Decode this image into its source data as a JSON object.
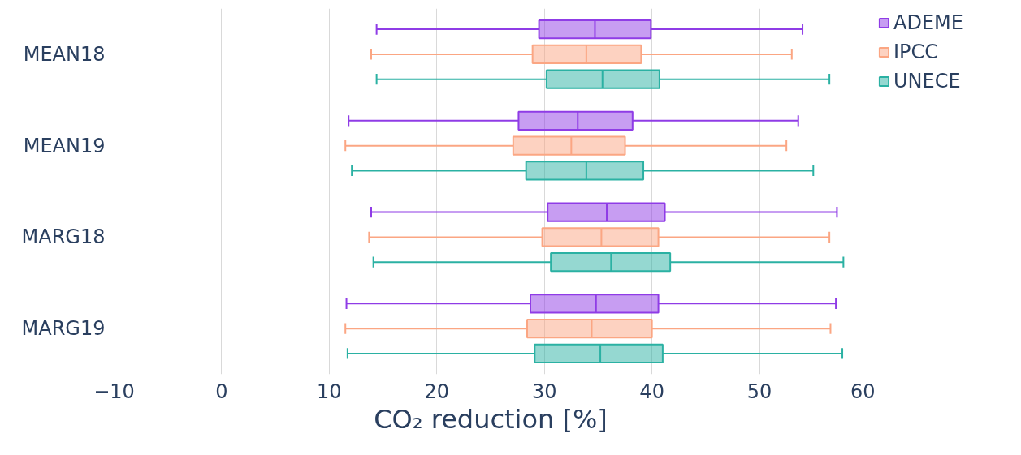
{
  "chart_data": {
    "type": "box",
    "orientation": "horizontal",
    "xlabel": "CO₂ reduction [%]",
    "categories": [
      "MEAN18",
      "MEAN19",
      "MARG18",
      "MARG19"
    ],
    "series": [
      {
        "name": "ADEME",
        "color": "#8f3ce6",
        "boxes": [
          {
            "low": 14.4,
            "q1": 29.5,
            "median": 34.7,
            "q3": 39.9,
            "high": 54.0
          },
          {
            "low": 11.8,
            "q1": 27.6,
            "median": 33.1,
            "q3": 38.2,
            "high": 53.6
          },
          {
            "low": 13.9,
            "q1": 30.3,
            "median": 35.8,
            "q3": 41.2,
            "high": 57.2
          },
          {
            "low": 11.6,
            "q1": 28.7,
            "median": 34.8,
            "q3": 40.6,
            "high": 57.1
          }
        ]
      },
      {
        "name": "IPCC",
        "color": "#fba683",
        "boxes": [
          {
            "low": 13.9,
            "q1": 28.9,
            "median": 33.9,
            "q3": 39.0,
            "high": 53.0
          },
          {
            "low": 11.5,
            "q1": 27.1,
            "median": 32.5,
            "q3": 37.5,
            "high": 52.5
          },
          {
            "low": 13.7,
            "q1": 29.8,
            "median": 35.3,
            "q3": 40.6,
            "high": 56.5
          },
          {
            "low": 11.5,
            "q1": 28.4,
            "median": 34.4,
            "q3": 40.0,
            "high": 56.6
          }
        ]
      },
      {
        "name": "UNECE",
        "color": "#2bb1a3",
        "boxes": [
          {
            "low": 14.4,
            "q1": 30.2,
            "median": 35.4,
            "q3": 40.7,
            "high": 56.5
          },
          {
            "low": 12.1,
            "q1": 28.3,
            "median": 33.9,
            "q3": 39.2,
            "high": 55.0
          },
          {
            "low": 14.1,
            "q1": 30.6,
            "median": 36.2,
            "q3": 41.7,
            "high": 57.8
          },
          {
            "low": 11.7,
            "q1": 29.1,
            "median": 35.2,
            "q3": 41.0,
            "high": 57.7
          }
        ]
      }
    ],
    "xlim": [
      -10,
      60
    ],
    "xticks": [
      {
        "value": -10,
        "label": "−10"
      },
      0,
      10,
      20,
      30,
      40,
      50,
      60
    ],
    "grid": "x",
    "legend": "top right"
  }
}
